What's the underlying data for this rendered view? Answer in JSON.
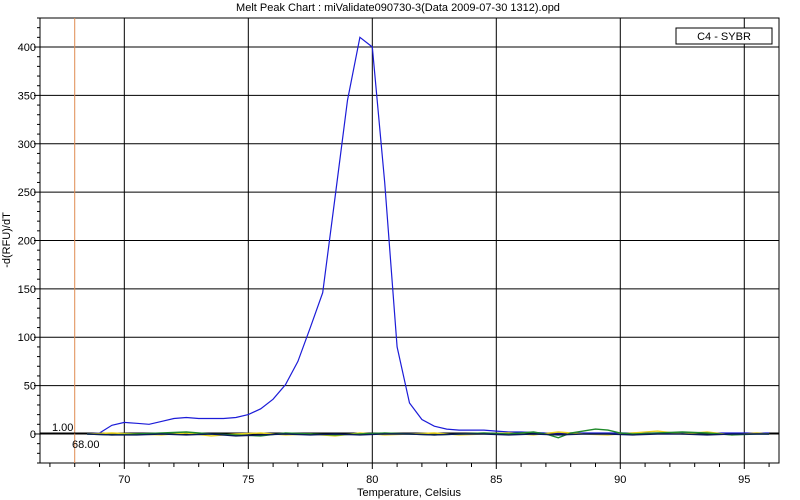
{
  "chart_data": {
    "type": "line",
    "title": "Melt Peak Chart : miValidate090730-3(Data 2009-07-30 1312).opd",
    "xlabel": "Temperature, Celsius",
    "ylabel": "-d(RFU)/dT",
    "xlim": [
      66.6,
      96.4
    ],
    "ylim": [
      -30,
      430
    ],
    "x_ticks": [
      70,
      75,
      80,
      85,
      90,
      95
    ],
    "y_ticks": [
      0,
      50,
      100,
      150,
      200,
      250,
      300,
      350,
      400
    ],
    "grid": true,
    "legend": {
      "position": "top-right",
      "entries": [
        "C4 - SYBR"
      ]
    },
    "threshold": {
      "value": 1.0,
      "label": "1.00"
    },
    "begin_marker": {
      "x": 68.0,
      "label": "68.00"
    },
    "series": [
      {
        "name": "C4 - SYBR",
        "color": "#1c1cd8",
        "x": [
          68.5,
          69.0,
          69.5,
          70.0,
          70.5,
          71.0,
          71.5,
          72.0,
          72.5,
          73.0,
          73.5,
          74.0,
          74.5,
          75.0,
          75.5,
          76.0,
          76.5,
          77.0,
          77.5,
          78.0,
          78.5,
          79.0,
          79.5,
          80.0,
          80.5,
          81.0,
          81.5,
          82.0,
          82.5,
          83.0,
          83.5,
          84.0,
          84.5,
          85.0,
          85.5,
          86.0,
          87.0,
          88.0,
          89.0,
          90.0,
          91.0,
          92.0,
          93.0,
          94.0,
          95.0,
          96.0
        ],
        "y": [
          0,
          1,
          9,
          12,
          11,
          10,
          13,
          16,
          17,
          16,
          16,
          16,
          17,
          20,
          26,
          36,
          51,
          75,
          110,
          146,
          245,
          345,
          410,
          400,
          260,
          90,
          32,
          15,
          8,
          5,
          4,
          4,
          4,
          3,
          2,
          2,
          1,
          1,
          1,
          1,
          1,
          1,
          1,
          1,
          1,
          1
        ]
      },
      {
        "name": "",
        "color": "#e6d21e",
        "x": [
          68.5,
          69.5,
          70.5,
          71.5,
          72.5,
          73.5,
          74.5,
          75.5,
          76.5,
          77.5,
          78.5,
          79.5,
          80.5,
          81.5,
          82.5,
          83.5,
          84.5,
          85.5,
          86.5,
          87.5,
          88.5,
          89.5,
          90.5,
          91.5,
          92.5,
          93.5,
          94.5,
          95.5,
          96.0
        ],
        "y": [
          0,
          1,
          0,
          -1,
          1,
          -2,
          0,
          1,
          -1,
          0,
          -2,
          1,
          -1,
          0,
          1,
          -1,
          0,
          1,
          -1,
          2,
          0,
          -1,
          1,
          3,
          0,
          2,
          -1,
          1,
          0
        ]
      },
      {
        "name": "",
        "color": "#1f8a2a",
        "x": [
          68.5,
          69.5,
          70.5,
          71.5,
          72.5,
          73.5,
          74.5,
          75.5,
          76.5,
          77.5,
          78.5,
          79.5,
          80.5,
          81.5,
          82.5,
          83.5,
          84.5,
          85.5,
          86.5,
          87.0,
          87.5,
          88.0,
          88.5,
          89.0,
          89.5,
          90.0,
          90.5,
          91.5,
          92.5,
          93.5,
          94.5,
          95.5,
          96.0
        ],
        "y": [
          0,
          -1,
          0,
          1,
          2,
          0,
          -1,
          -2,
          1,
          0,
          -1,
          0,
          1,
          0,
          -1,
          0,
          1,
          0,
          2,
          0,
          -4,
          1,
          3,
          5,
          4,
          1,
          0,
          1,
          2,
          1,
          -1,
          0,
          0
        ]
      },
      {
        "name": "",
        "color": "#0a1a5a",
        "x": [
          68.5,
          69.5,
          70.5,
          71.5,
          72.5,
          73.5,
          74.5,
          75.5,
          76.5,
          77.5,
          78.5,
          79.5,
          80.5,
          81.5,
          82.5,
          83.5,
          84.5,
          85.5,
          86.5,
          87.5,
          88.5,
          89.5,
          90.5,
          91.5,
          92.5,
          93.5,
          94.5,
          95.5,
          96.0
        ],
        "y": [
          0,
          -1,
          -1,
          0,
          -1,
          0,
          -2,
          -1,
          0,
          -1,
          0,
          -1,
          0,
          0,
          -1,
          0,
          0,
          -1,
          0,
          -1,
          0,
          0,
          -1,
          0,
          0,
          -1,
          0,
          0,
          0
        ]
      }
    ]
  }
}
